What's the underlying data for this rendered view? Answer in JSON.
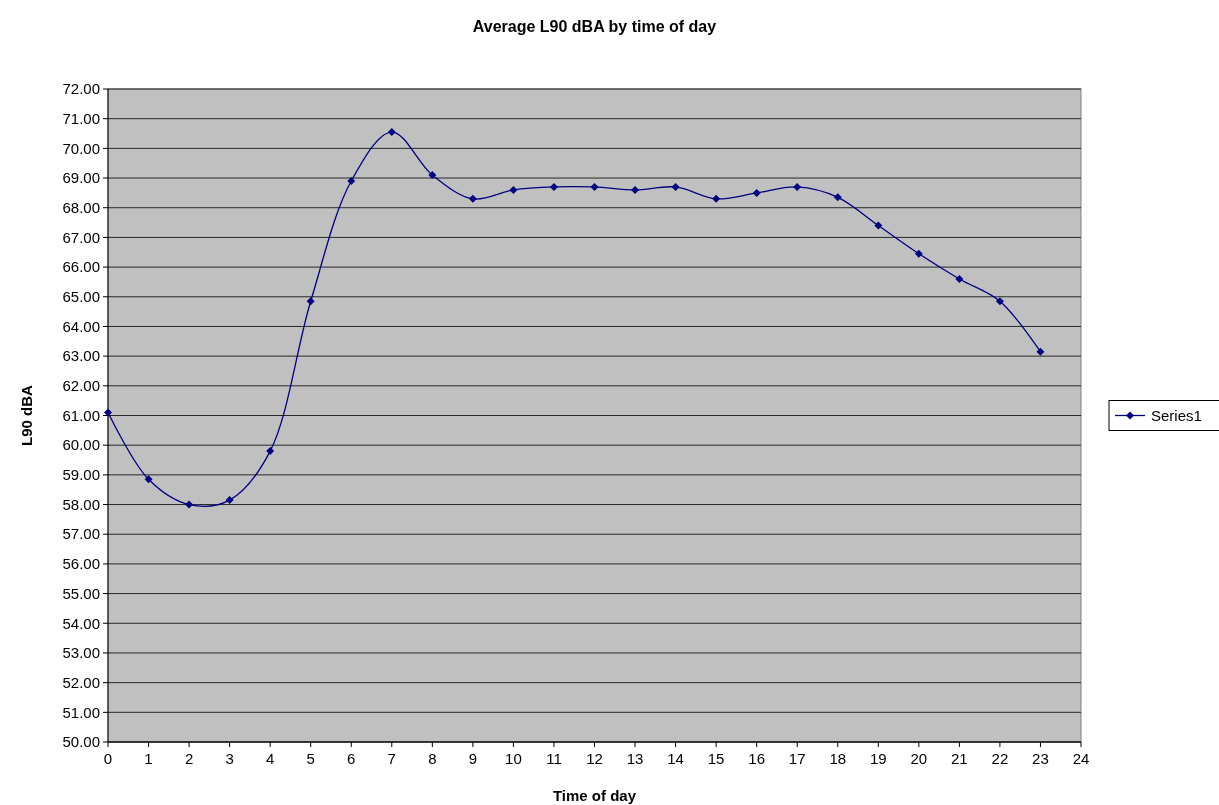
{
  "chart_data": {
    "type": "line",
    "title": "Average L90 dBA by time of day",
    "xlabel": "Time of day",
    "ylabel": "L90 dBA",
    "x": [
      0,
      1,
      2,
      3,
      4,
      5,
      6,
      7,
      8,
      9,
      10,
      11,
      12,
      13,
      14,
      15,
      16,
      17,
      18,
      19,
      20,
      21,
      22,
      23
    ],
    "series": [
      {
        "name": "Series1",
        "color": "#000080",
        "values": [
          61.1,
          58.85,
          58.0,
          58.15,
          59.8,
          64.85,
          68.9,
          70.55,
          69.1,
          68.3,
          68.6,
          68.7,
          68.7,
          68.6,
          68.7,
          68.3,
          68.5,
          68.7,
          68.35,
          67.4,
          66.45,
          65.6,
          64.85,
          63.15
        ]
      }
    ],
    "xlim": [
      0,
      24
    ],
    "xticks": [
      0,
      1,
      2,
      3,
      4,
      5,
      6,
      7,
      8,
      9,
      10,
      11,
      12,
      13,
      14,
      15,
      16,
      17,
      18,
      19,
      20,
      21,
      22,
      23,
      24
    ],
    "ylim": [
      50,
      72
    ],
    "yticks": [
      {
        "value": 50,
        "label": "50.00"
      },
      {
        "value": 51,
        "label": "51.00"
      },
      {
        "value": 52,
        "label": "52.00"
      },
      {
        "value": 53,
        "label": "53.00"
      },
      {
        "value": 54,
        "label": "54.00"
      },
      {
        "value": 55,
        "label": "55.00"
      },
      {
        "value": 56,
        "label": "56.00"
      },
      {
        "value": 57,
        "label": "57.00"
      },
      {
        "value": 58,
        "label": "58.00"
      },
      {
        "value": 59,
        "label": "59.00"
      },
      {
        "value": 60,
        "label": "60.00"
      },
      {
        "value": 61,
        "label": "61.00"
      },
      {
        "value": 62,
        "label": "62.00"
      },
      {
        "value": 63,
        "label": "63.00"
      },
      {
        "value": 64,
        "label": "64.00"
      },
      {
        "value": 65,
        "label": "65.00"
      },
      {
        "value": 66,
        "label": "66.00"
      },
      {
        "value": 67,
        "label": "67.00"
      },
      {
        "value": 68,
        "label": "68.00"
      },
      {
        "value": 69,
        "label": "69.00"
      },
      {
        "value": 70,
        "label": "70.00"
      },
      {
        "value": 71,
        "label": "71.00"
      },
      {
        "value": 72,
        "label": "72.00"
      }
    ],
    "grid": "y",
    "legend": "right",
    "marker": "diamond",
    "line_style": "solid"
  }
}
